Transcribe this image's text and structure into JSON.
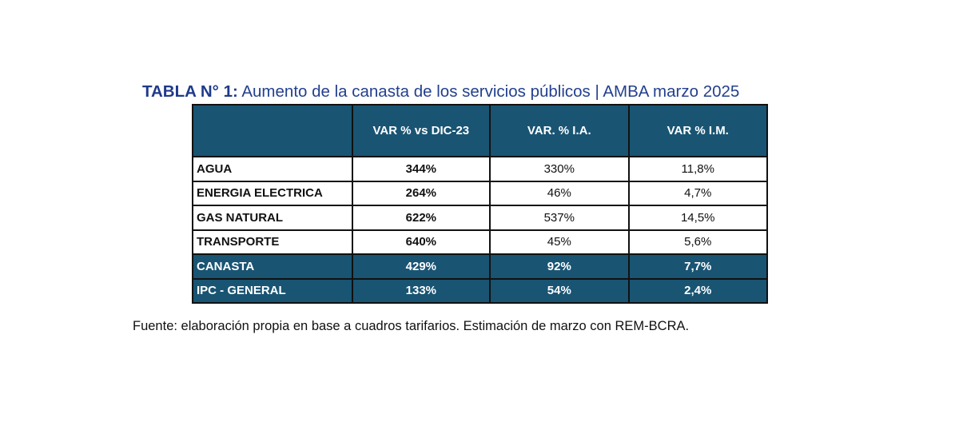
{
  "title": {
    "prefix": "TABLA N° 1:",
    "text": " Aumento de la canasta de los servicios públicos | AMBA marzo 2025"
  },
  "table": {
    "headers": [
      "",
      "VAR % vs DIC-23",
      "VAR. % I.A.",
      "VAR % I.M."
    ],
    "rows": [
      {
        "label": "AGUA",
        "values": [
          "344%",
          "330%",
          "11,8%"
        ],
        "highlight": false
      },
      {
        "label": "ENERGIA ELECTRICA",
        "values": [
          "264%",
          "46%",
          "4,7%"
        ],
        "highlight": false
      },
      {
        "label": "GAS NATURAL",
        "values": [
          "622%",
          "537%",
          "14,5%"
        ],
        "highlight": false
      },
      {
        "label": "TRANSPORTE",
        "values": [
          "640%",
          "45%",
          "5,6%"
        ],
        "highlight": false
      },
      {
        "label": "CANASTA",
        "values": [
          "429%",
          "92%",
          "7,7%"
        ],
        "highlight": true
      },
      {
        "label": "IPC - GENERAL",
        "values": [
          "133%",
          "54%",
          "2,4%"
        ],
        "highlight": true
      }
    ]
  },
  "footer": "Fuente: elaboración propia en base a cuadros tarifarios. Estimación de marzo con REM-BCRA."
}
